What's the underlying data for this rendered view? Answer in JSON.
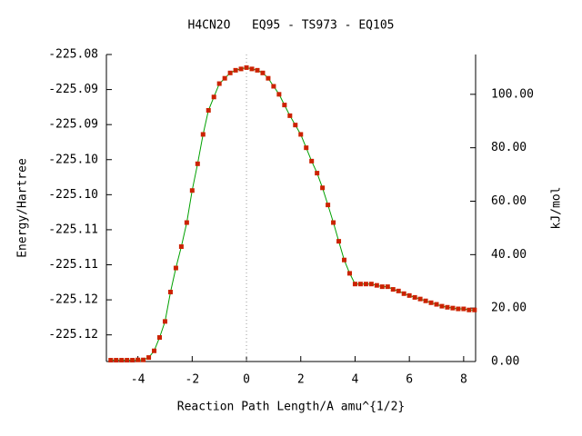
{
  "chart_data": {
    "type": "line",
    "title": "H4CN2O   EQ95 - TS973 - EQ105",
    "xlabel": "Reaction Path Length/A amu^{1/2}",
    "ylabel": "Energy/Hartree",
    "y2label": "kJ/mol",
    "xlim": [
      -5.16,
      8.44
    ],
    "xticks": [
      -4,
      -2,
      0,
      2,
      4,
      6,
      8
    ],
    "ylim": [
      -225.1238,
      -225.08
    ],
    "yticks": [
      {
        "value": -225.08,
        "label": "-225.08"
      },
      {
        "value": -225.085,
        "label": "-225.09"
      },
      {
        "value": -225.09,
        "label": "-225.09"
      },
      {
        "value": -225.095,
        "label": "-225.10"
      },
      {
        "value": -225.1,
        "label": "-225.10"
      },
      {
        "value": -225.105,
        "label": "-225.11"
      },
      {
        "value": -225.11,
        "label": "-225.11"
      },
      {
        "value": -225.115,
        "label": "-225.12"
      },
      {
        "value": -225.12,
        "label": "-225.12"
      }
    ],
    "y2lim": [
      0,
      114.9
    ],
    "y2ticks": [
      {
        "value": 0,
        "label": "0.00"
      },
      {
        "value": 20,
        "label": "20.00"
      },
      {
        "value": 40,
        "label": "40.00"
      },
      {
        "value": 60,
        "label": "60.00"
      },
      {
        "value": 80,
        "label": "80.00"
      },
      {
        "value": 100,
        "label": "100.00"
      }
    ],
    "vline_x": 0,
    "x": [
      -5.0,
      -4.8,
      -4.6,
      -4.4,
      -4.2,
      -4.0,
      -3.8,
      -3.6,
      -3.4,
      -3.2,
      -3.0,
      -2.8,
      -2.6,
      -2.4,
      -2.2,
      -2.0,
      -1.8,
      -1.6,
      -1.4,
      -1.2,
      -1.0,
      -0.8,
      -0.6,
      -0.4,
      -0.2,
      0,
      0.2,
      0.4,
      0.6,
      0.8,
      1.0,
      1.2,
      1.4,
      1.6,
      1.8,
      2.0,
      2.2,
      2.4,
      2.6,
      2.8,
      3.0,
      3.2,
      3.4,
      3.6,
      3.8,
      4.0,
      4.2,
      4.4,
      4.6,
      4.8,
      5.0,
      5.2,
      5.4,
      5.6,
      5.8,
      6.0,
      6.2,
      6.4,
      6.6,
      6.8,
      7.0,
      7.2,
      7.4,
      7.6,
      7.8,
      8.0,
      8.2,
      8.4
    ],
    "series": [
      {
        "axis": "y2",
        "color": "#00a000",
        "marker_color": "#cc2200",
        "values": [
          0.5,
          0.5,
          0.5,
          0.5,
          0.5,
          0.6,
          0.6,
          1.5,
          4,
          9,
          15,
          26,
          35,
          43,
          52,
          64,
          74,
          85,
          94,
          99,
          104,
          106,
          108,
          109,
          109.5,
          110,
          109.5,
          109,
          108,
          106,
          103,
          100,
          96,
          92,
          88.5,
          85,
          80,
          75,
          70.5,
          65,
          58.6,
          52,
          45,
          38,
          33,
          29,
          29,
          29,
          29,
          28.5,
          28,
          28,
          27,
          26.4,
          25.4,
          24.7,
          24,
          23.4,
          22.7,
          22,
          21.4,
          20.7,
          20.3,
          20,
          19.7,
          19.7,
          19.3,
          19.3
        ]
      }
    ]
  }
}
